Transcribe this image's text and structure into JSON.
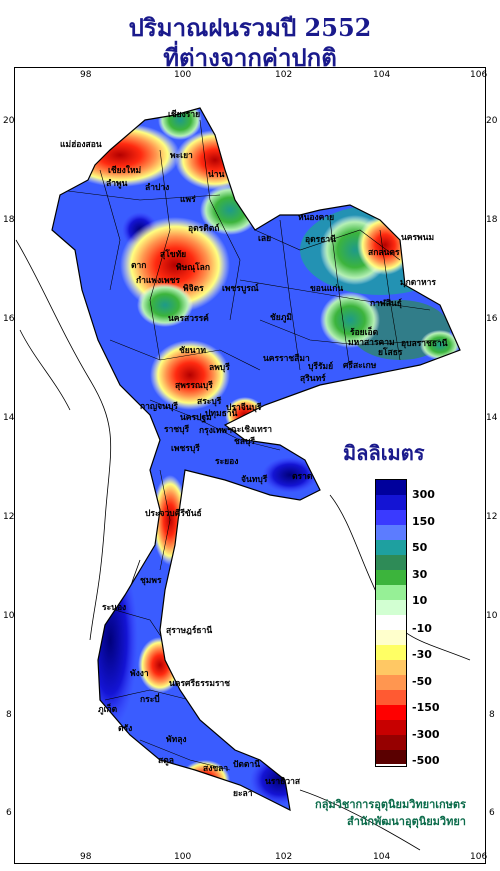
{
  "title_line1": "ปริมาณฝนรวมปี 2552",
  "title_line2": "ที่ต่างจากค่าปกติ",
  "map": {
    "lon_ticks": [
      "98",
      "100",
      "102",
      "104",
      "106"
    ],
    "lat_ticks": [
      "20",
      "18",
      "16",
      "14",
      "12",
      "10",
      "8",
      "6"
    ],
    "places": [
      "เชียงราย",
      "แม่ฮ่องสอน",
      "พะเยา",
      "น่าน",
      "เชียงใหม่",
      "ลำพูน",
      "ลำปาง",
      "แพร่",
      "ตาก",
      "อุตรดิตถ์",
      "พิษณุโลก",
      "สุโขทัย",
      "กำแพงเพชร",
      "พิจิตร",
      "เพชรบูรณ์",
      "นครสวรรค์",
      "หนองคาย",
      "อุดรธานี",
      "เลย",
      "นครพนม",
      "สกลนคร",
      "มุกดาหาร",
      "ขอนแก่น",
      "ชัยภูมิ",
      "กาฬสินธุ์",
      "ร้อยเอ็ด",
      "มหาสารคาม",
      "ยโสธร",
      "อุบลราชธานี",
      "ศรีสะเกษ",
      "สุรินทร์",
      "บุรีรัมย์",
      "นครราชสีมา",
      "ลพบุรี",
      "สระบุรี",
      "ชัยนาท",
      "สุพรรณบุรี",
      "กาญจนบุรี",
      "ราชบุรี",
      "นครปฐม",
      "ปทุมธานี",
      "กรุงเทพฯ",
      "ปราจีนบุรี",
      "ฉะเชิงเทรา",
      "ชลบุรี",
      "ระยอง",
      "จันทบุรี",
      "ตราด",
      "เพชรบุรี",
      "ประจวบคีรีขันธ์",
      "ชุมพร",
      "ระนอง",
      "สุราษฎร์ธานี",
      "พังงา",
      "ภูเก็ต",
      "กระบี่",
      "นครศรีธรรมราช",
      "ตรัง",
      "พัทลุง",
      "สตูล",
      "สงขลา",
      "ปัตตานี",
      "ยะลา",
      "นราธิวาส"
    ]
  },
  "legend": {
    "title": "มิลลิเมตร",
    "labels": [
      "300",
      "150",
      "50",
      "30",
      "10",
      "-10",
      "-30",
      "-50",
      "-150",
      "-300",
      "-500"
    ],
    "colors": [
      "#00009c",
      "#1414d4",
      "#3a3aff",
      "#5c7cff",
      "#1ea0a0",
      "#2e8b57",
      "#3cb43c",
      "#96f096",
      "#d2ffd2",
      "#ffffff",
      "#ffffcc",
      "#ffff64",
      "#ffc864",
      "#ff9650",
      "#ff5a32",
      "#ff0000",
      "#c80000",
      "#960000",
      "#5a0000"
    ]
  },
  "credit": {
    "line1": "กลุ่มวิชาการอุตุนิยมวิทยาเกษตร",
    "line2": "สำนักพัฒนาอุตุนิยมวิทยา"
  }
}
